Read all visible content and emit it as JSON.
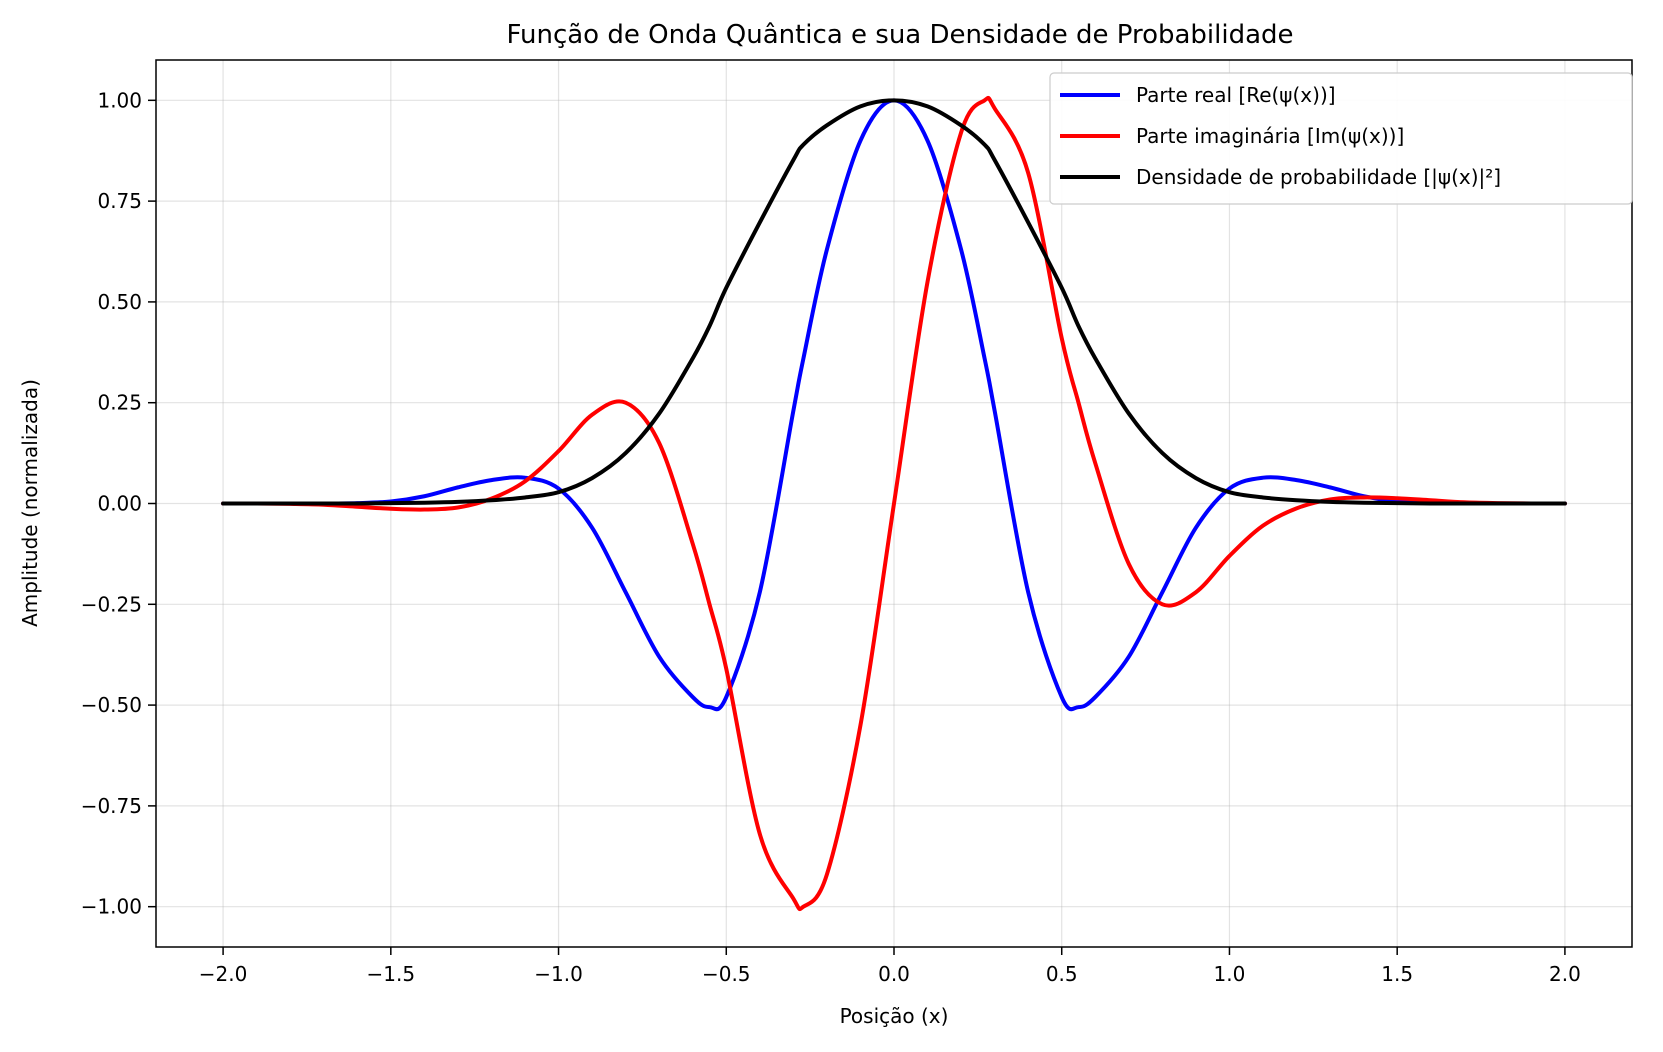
{
  "chart_data": {
    "type": "line",
    "title": "Função de Onda Quântica e sua Densidade de Probabilidade",
    "xlabel": "Posição (x)",
    "ylabel": "Amplitude (normalizada)",
    "xlim": [
      -2.2,
      2.2
    ],
    "ylim": [
      -1.1,
      1.1
    ],
    "x_ticks": [
      -2.0,
      -1.5,
      -1.0,
      -0.5,
      0.0,
      0.5,
      1.0,
      1.5,
      2.0
    ],
    "x_tick_labels": [
      "−2.0",
      "−1.5",
      "−1.0",
      "−0.5",
      "0.0",
      "0.5",
      "1.0",
      "1.5",
      "2.0"
    ],
    "y_ticks": [
      1.0,
      0.75,
      0.5,
      0.25,
      0.0,
      -0.25,
      -0.5,
      -0.75,
      -1.0
    ],
    "y_tick_labels": [
      "1.00",
      "0.75",
      "0.50",
      "0.25",
      "0.00",
      "−0.25",
      "−0.50",
      "−0.75",
      "−1.00"
    ],
    "grid": true,
    "legend_position": "top-right",
    "x": [
      -2.0,
      -1.9,
      -1.8,
      -1.7,
      -1.6,
      -1.5,
      -1.4,
      -1.3,
      -1.2,
      -1.1,
      -1.0,
      -0.9,
      -0.8,
      -0.7,
      -0.6,
      -0.55,
      -0.5,
      -0.4,
      -0.3,
      -0.27,
      -0.2,
      -0.1,
      0.0,
      0.1,
      0.2,
      0.27,
      0.3,
      0.4,
      0.5,
      0.55,
      0.6,
      0.7,
      0.8,
      0.9,
      1.0,
      1.1,
      1.2,
      1.3,
      1.4,
      1.5,
      1.6,
      1.7,
      1.8,
      1.9,
      2.0
    ],
    "series": [
      {
        "name": "Parte real [Re(ψ(x))]",
        "color": "#0000ff",
        "values": [
          0.0,
          0.0,
          0.0,
          0.0,
          0.001,
          0.005,
          0.018,
          0.04,
          0.058,
          0.064,
          0.037,
          -0.06,
          -0.22,
          -0.38,
          -0.48,
          -0.505,
          -0.48,
          -0.22,
          0.23,
          0.36,
          0.63,
          0.9,
          1.0,
          0.9,
          0.63,
          0.36,
          0.23,
          -0.22,
          -0.48,
          -0.505,
          -0.48,
          -0.38,
          -0.22,
          -0.06,
          0.037,
          0.064,
          0.058,
          0.04,
          0.018,
          0.005,
          0.001,
          0.0,
          0.0,
          0.0,
          0.0
        ]
      },
      {
        "name": "Parte imaginária [Im(ψ(x))]",
        "color": "#ff0000",
        "values": [
          0.0,
          0.0,
          -0.001,
          -0.003,
          -0.008,
          -0.013,
          -0.015,
          -0.01,
          0.012,
          0.055,
          0.13,
          0.22,
          0.25,
          0.15,
          -0.1,
          -0.25,
          -0.41,
          -0.82,
          -0.98,
          -1.0,
          -0.92,
          -0.55,
          0.0,
          0.55,
          0.92,
          1.0,
          0.98,
          0.82,
          0.41,
          0.25,
          0.1,
          -0.15,
          -0.25,
          -0.22,
          -0.13,
          -0.055,
          -0.012,
          0.01,
          0.015,
          0.013,
          0.008,
          0.003,
          0.001,
          0.0,
          0.0
        ]
      },
      {
        "name": "Densidade de probabilidade [|ψ(x)|²]",
        "color": "#000000",
        "values": [
          0.0,
          0.0,
          0.0,
          0.0,
          0.0,
          0.001,
          0.002,
          0.004,
          0.008,
          0.015,
          0.028,
          0.063,
          0.125,
          0.223,
          0.36,
          0.44,
          0.535,
          0.697,
          0.852,
          0.89,
          0.938,
          0.985,
          1.0,
          0.985,
          0.938,
          0.89,
          0.852,
          0.697,
          0.535,
          0.44,
          0.36,
          0.223,
          0.125,
          0.063,
          0.028,
          0.015,
          0.008,
          0.004,
          0.002,
          0.001,
          0.0,
          0.0,
          0.0,
          0.0,
          0.0
        ]
      }
    ]
  }
}
